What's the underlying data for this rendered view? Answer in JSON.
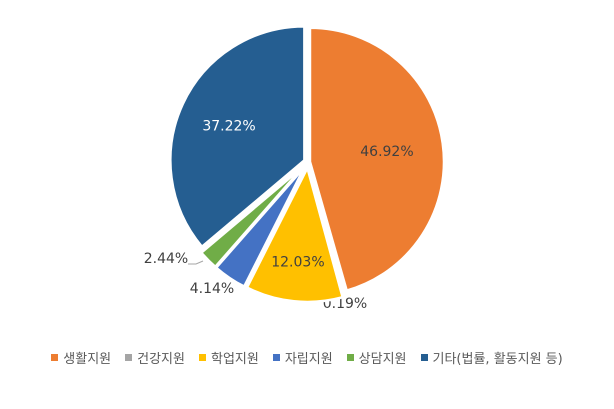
{
  "chart_data": {
    "type": "pie",
    "title": "",
    "slices": [
      {
        "name": "생활지원",
        "value": 46.92,
        "label": "46.92%",
        "color": "#ED7D31"
      },
      {
        "name": "건강지원",
        "value": 0.19,
        "label": "0.19%",
        "color": "#A5A5A5"
      },
      {
        "name": "학업지원",
        "value": 12.03,
        "label": "12.03%",
        "color": "#FFC000"
      },
      {
        "name": "자립지원",
        "value": 4.14,
        "label": "4.14%",
        "color": "#4472C4"
      },
      {
        "name": "상담지원",
        "value": 2.44,
        "label": "2.44%",
        "color": "#70AD47"
      },
      {
        "name": "기타(법률, 활동지원 등)",
        "value": 37.22,
        "label": "37.22%",
        "color": "#255E91"
      }
    ],
    "start_angle": "12 o'clock, clockwise",
    "legend_position": "bottom"
  }
}
